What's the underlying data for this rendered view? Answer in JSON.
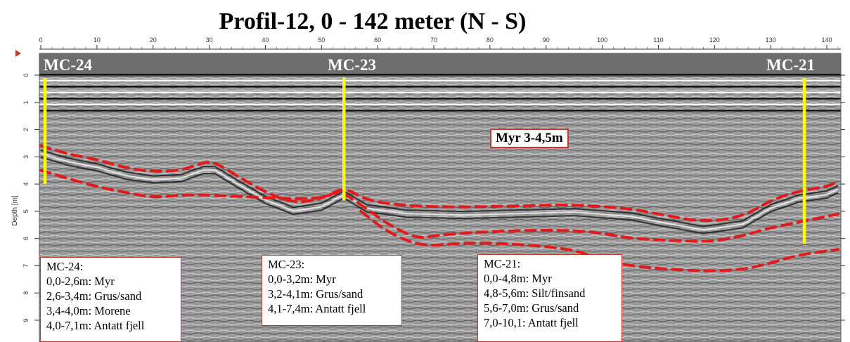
{
  "title": "Profil-12, 0 - 142 meter (N - S)",
  "colors": {
    "boundary": "#e31a1c",
    "borehole": "#ffff00",
    "box_border": "#c0392b",
    "top_band": "#6e6e6e"
  },
  "chart_data": {
    "type": "radargram",
    "title": "Profil-12, 0 - 142 meter (N - S)",
    "xlabel": "",
    "ylabel": "Depth [m]",
    "xlim": [
      0,
      142
    ],
    "ylim": [
      9.8,
      -0.8
    ],
    "x_ticks": [
      0,
      10,
      20,
      30,
      40,
      50,
      60,
      70,
      80,
      90,
      100,
      110,
      120,
      130,
      140
    ],
    "y_ticks": [
      0,
      1,
      2,
      3,
      4,
      5,
      6,
      7,
      8,
      9
    ],
    "boreholes": [
      {
        "name": "MC-24",
        "x": 0.3,
        "depth_top": 0.1,
        "depth_bottom": 4.0
      },
      {
        "name": "MC-23",
        "x": 54.0,
        "depth_top": 0.1,
        "depth_bottom": 4.6
      },
      {
        "name": "MC-21",
        "x": 136.0,
        "depth_top": 0.1,
        "depth_bottom": 6.2
      }
    ],
    "interpreted_boundaries": [
      {
        "name": "upper",
        "points": [
          [
            0,
            2.6
          ],
          [
            5,
            2.9
          ],
          [
            10,
            3.1
          ],
          [
            15,
            3.4
          ],
          [
            20,
            3.55
          ],
          [
            25,
            3.5
          ],
          [
            29,
            3.2
          ],
          [
            31,
            3.2
          ],
          [
            35,
            3.7
          ],
          [
            40,
            4.3
          ],
          [
            45,
            4.7
          ],
          [
            50,
            4.55
          ],
          [
            54,
            4.1
          ],
          [
            58,
            4.6
          ],
          [
            65,
            4.8
          ],
          [
            75,
            4.85
          ],
          [
            85,
            4.8
          ],
          [
            95,
            4.75
          ],
          [
            105,
            4.9
          ],
          [
            110,
            5.1
          ],
          [
            118,
            5.4
          ],
          [
            125,
            5.2
          ],
          [
            130,
            4.6
          ],
          [
            135,
            4.25
          ],
          [
            140,
            4.1
          ],
          [
            142,
            3.9
          ]
        ]
      },
      {
        "name": "middle",
        "points": [
          [
            0,
            3.5
          ],
          [
            10,
            4.1
          ],
          [
            15,
            4.3
          ],
          [
            20,
            4.5
          ],
          [
            25,
            4.4
          ],
          [
            30,
            4.4
          ],
          [
            50,
            4.6
          ],
          [
            53,
            4.2
          ],
          [
            58,
            4.9
          ],
          [
            62,
            5.5
          ],
          [
            67,
            6.0
          ],
          [
            70,
            5.9
          ],
          [
            75,
            5.8
          ],
          [
            85,
            5.7
          ],
          [
            95,
            5.7
          ],
          [
            100,
            5.8
          ],
          [
            105,
            6.0
          ],
          [
            115,
            6.1
          ],
          [
            120,
            6.1
          ],
          [
            125,
            5.9
          ],
          [
            130,
            5.6
          ],
          [
            135,
            5.4
          ],
          [
            142,
            5.1
          ]
        ]
      },
      {
        "name": "lower",
        "points": [
          [
            57,
            5.0
          ],
          [
            62,
            5.8
          ],
          [
            68,
            6.3
          ],
          [
            75,
            6.15
          ],
          [
            85,
            6.2
          ],
          [
            95,
            6.4
          ],
          [
            100,
            6.8
          ],
          [
            105,
            7.0
          ],
          [
            110,
            7.1
          ],
          [
            118,
            7.2
          ],
          [
            125,
            7.15
          ],
          [
            130,
            6.9
          ],
          [
            135,
            6.6
          ],
          [
            142,
            6.4
          ]
        ]
      }
    ],
    "labels": {
      "mc24": "MC-24",
      "mc23": "MC-23",
      "mc21": "MC-21",
      "myr_note": "Myr 3-4,5m"
    }
  },
  "boxes": {
    "mc24": {
      "title": "MC-24:",
      "lines": [
        "0,0-2,6m: Myr",
        "2,6-3,4m: Grus/sand",
        "3,4-4,0m: Morene",
        "4,0-7,1m: Antatt fjell"
      ]
    },
    "mc23": {
      "title": "MC-23:",
      "lines": [
        "0,0-3,2m: Myr",
        "3,2-4,1m: Grus/sand",
        "4,1-7,4m: Antatt fjell"
      ]
    },
    "mc21": {
      "title": "MC-21:",
      "lines": [
        "0,0-4,8m: Myr",
        "4,8-5,6m: Silt/finsand",
        "5,6-7,0m: Grus/sand",
        "7,0-10,1: Antatt fjell"
      ]
    }
  }
}
